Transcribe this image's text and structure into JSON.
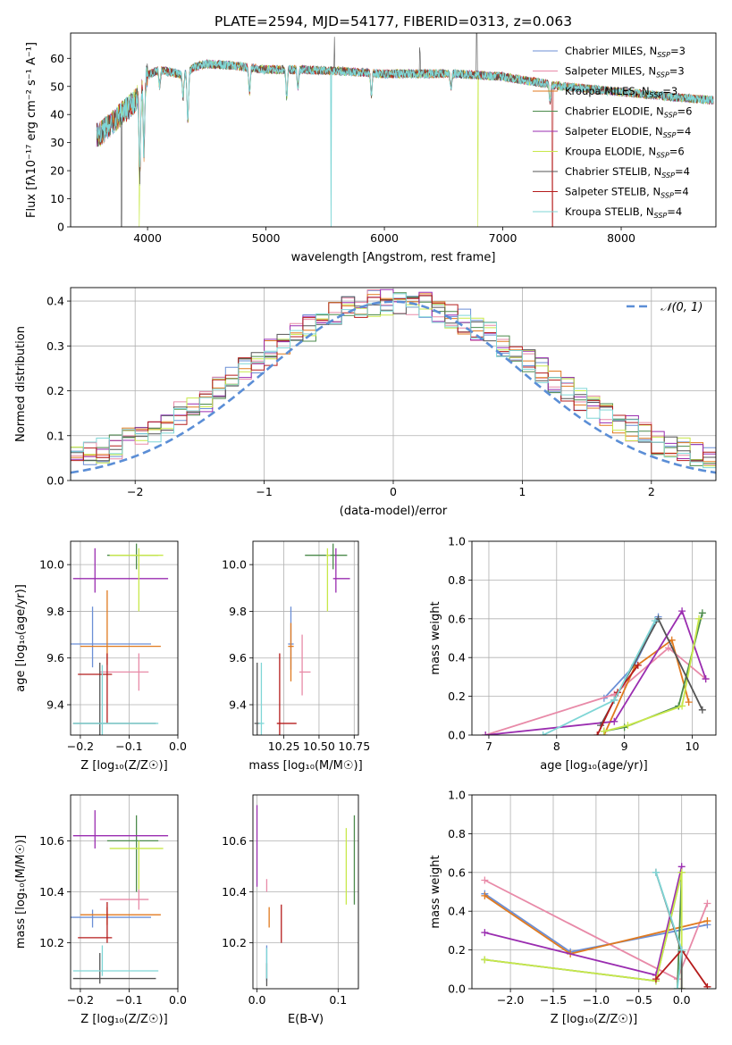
{
  "figure": {
    "title": "PLATE=2594, MJD=54177, FIBERID=0313, z=0.063"
  },
  "models": [
    {
      "name": "Chabrier MILES",
      "nssp": "3",
      "color": "#6b8fd6"
    },
    {
      "name": "Salpeter MILES",
      "nssp": "3",
      "color": "#e88aa8"
    },
    {
      "name": "Kroupa MILES",
      "nssp": "3",
      "color": "#e07a1f"
    },
    {
      "name": "Chabrier ELODIE",
      "nssp": "6",
      "color": "#4b8a4b"
    },
    {
      "name": "Salpeter ELODIE",
      "nssp": "4",
      "color": "#9a2db0"
    },
    {
      "name": "Kroupa ELODIE",
      "nssp": "6",
      "color": "#c8e84a"
    },
    {
      "name": "Chabrier STELIB",
      "nssp": "4",
      "color": "#555555"
    },
    {
      "name": "Salpeter STELIB",
      "nssp": "4",
      "color": "#b51c1c"
    },
    {
      "name": "Kroupa STELIB",
      "nssp": "4",
      "color": "#7fd6d6"
    }
  ],
  "chart_data": [
    {
      "id": "spectrum",
      "type": "line",
      "xlabel": "wavelength [Angstrom, rest frame]",
      "ylabel": "Flux [fλ10⁻¹⁷ erg cm⁻² s⁻¹ A⁻¹]",
      "xlim": [
        3350,
        8800
      ],
      "ylim": [
        0,
        69
      ],
      "xticks": [
        "4000",
        "5000",
        "6000",
        "7000",
        "8000"
      ],
      "yticks": [
        "0",
        "10",
        "20",
        "30",
        "40",
        "50",
        "60"
      ],
      "legend": "top-right",
      "continuum": {
        "x": [
          3600,
          3700,
          3800,
          3900,
          3950,
          4000,
          4100,
          4200,
          4300,
          4400,
          4500,
          4700,
          5000,
          5300,
          5600,
          6000,
          6300,
          6600,
          7000,
          7500,
          8000,
          8500,
          8800
        ],
        "y": [
          33,
          37,
          41,
          45,
          50,
          54,
          56,
          55,
          54,
          57,
          58,
          57.5,
          56,
          56,
          55.5,
          54.5,
          54.5,
          54.5,
          53.5,
          50,
          48,
          46,
          45
        ]
      },
      "absorption_lines": [
        {
          "x": 3934,
          "depth": 30
        },
        {
          "x": 3969,
          "depth": 25
        },
        {
          "x": 4102,
          "depth": 6
        },
        {
          "x": 4300,
          "depth": 8
        },
        {
          "x": 4340,
          "depth": 18
        },
        {
          "x": 4861,
          "depth": 9
        },
        {
          "x": 5175,
          "depth": 10
        },
        {
          "x": 5270,
          "depth": 6
        },
        {
          "x": 5890,
          "depth": 8
        },
        {
          "x": 6563,
          "depth": 5
        },
        {
          "x": 7400,
          "depth": 6
        }
      ],
      "emission_spikes": [
        {
          "x": 5577,
          "height": 13
        },
        {
          "x": 6300,
          "height": 8
        },
        {
          "x": 6780,
          "height": 18
        }
      ],
      "dropouts": [
        {
          "x": 3780,
          "to": 0,
          "model": 6
        },
        {
          "x": 3930,
          "to": 0,
          "model": 5
        },
        {
          "x": 6790,
          "to": 0,
          "model": 5
        },
        {
          "x": 7420,
          "to": 0,
          "model": 7
        },
        {
          "x": 5550,
          "to": 0,
          "model": 8
        }
      ]
    },
    {
      "id": "residual-hist",
      "type": "histogram",
      "xlabel": "(data-model)/error",
      "ylabel": "Normed distribution",
      "xlim": [
        -2.5,
        2.5
      ],
      "ylim": [
        0,
        0.43
      ],
      "xticks": [
        "−2",
        "−1",
        "0",
        "1",
        "2"
      ],
      "yticks": [
        "0.0",
        "0.1",
        "0.2",
        "0.3",
        "0.4"
      ],
      "bin_width": 0.1,
      "gaussian": {
        "label": "𝒩(0, 1)",
        "mean": 0,
        "sigma": 1,
        "color": "#5b8ed6"
      },
      "legend": "top-right"
    },
    {
      "id": "age-vs-Z",
      "type": "errorbar",
      "xlabel": "Z [log₁₀(Z/Z☉)]",
      "ylabel": "age  [log₁₀(age/yr)]",
      "xlim": [
        -0.22,
        0.0
      ],
      "ylim": [
        9.27,
        10.1
      ],
      "xticks": [
        "−0.2",
        "−0.1",
        "0.0"
      ],
      "yticks": [
        "9.4",
        "9.6",
        "9.8",
        "10.0"
      ],
      "points": [
        {
          "model": 0,
          "x": -0.175,
          "xerr": [
            0.045,
            0.12
          ],
          "y": 9.66,
          "yerr": [
            0.1,
            0.16
          ]
        },
        {
          "model": 1,
          "x": -0.08,
          "xerr": [
            0.08,
            0.02
          ],
          "y": 9.54,
          "yerr": [
            0.08,
            0.08
          ]
        },
        {
          "model": 2,
          "x": -0.145,
          "xerr": [
            0.055,
            0.11
          ],
          "y": 9.65,
          "yerr": [
            0.08,
            0.24
          ]
        },
        {
          "model": 3,
          "x": -0.085,
          "xerr": [
            0.06,
            0.045
          ],
          "y": 10.04,
          "yerr": [
            0.06,
            0.05
          ]
        },
        {
          "model": 4,
          "x": -0.17,
          "xerr": [
            0.045,
            0.15
          ],
          "y": 9.94,
          "yerr": [
            0.06,
            0.13
          ]
        },
        {
          "model": 5,
          "x": -0.08,
          "xerr": [
            0.06,
            0.05
          ],
          "y": 10.04,
          "yerr": [
            0.24,
            0.03
          ]
        },
        {
          "model": 6,
          "x": -0.16,
          "xerr": [
            0.055,
            0.115
          ],
          "y": 9.32,
          "yerr": [
            0.05,
            0.26
          ]
        },
        {
          "model": 7,
          "x": -0.145,
          "xerr": [
            0.06,
            0.01
          ],
          "y": 9.53,
          "yerr": [
            0.21,
            0.09
          ]
        },
        {
          "model": 8,
          "x": -0.155,
          "xerr": [
            0.06,
            0.115
          ],
          "y": 9.32,
          "yerr": [
            0.05,
            0.25
          ]
        }
      ]
    },
    {
      "id": "age-vs-mass",
      "type": "errorbar",
      "xlabel": "mass [log₁₀(M/M☉)]",
      "ylabel": "",
      "xlim": [
        10.03,
        10.78
      ],
      "ylim": [
        9.27,
        10.1
      ],
      "xticks": [
        "10.25",
        "10.50",
        "10.75"
      ],
      "yticks": [
        "9.4",
        "9.6",
        "9.8",
        "10.0"
      ],
      "points": [
        {
          "model": 0,
          "x": 10.3,
          "xerr": [
            0.02,
            0.02
          ],
          "y": 9.66,
          "yerr": [
            0.11,
            0.16
          ]
        },
        {
          "model": 1,
          "x": 10.38,
          "xerr": [
            0.02,
            0.06
          ],
          "y": 9.54,
          "yerr": [
            0.1,
            0.16
          ]
        },
        {
          "model": 2,
          "x": 10.3,
          "xerr": [
            0.02,
            0.02
          ],
          "y": 9.65,
          "yerr": [
            0.15,
            0.1
          ]
        },
        {
          "model": 3,
          "x": 10.6,
          "xerr": [
            0.2,
            0.1
          ],
          "y": 10.04,
          "yerr": [
            0.06,
            0.05
          ]
        },
        {
          "model": 4,
          "x": 10.62,
          "xerr": [
            0.02,
            0.1
          ],
          "y": 9.94,
          "yerr": [
            0.06,
            0.13
          ]
        },
        {
          "model": 5,
          "x": 10.56,
          "xerr": [
            0.01,
            0.02
          ],
          "y": 10.04,
          "yerr": [
            0.24,
            0.03
          ]
        },
        {
          "model": 6,
          "x": 10.06,
          "xerr": [
            0.02,
            0.02
          ],
          "y": 9.32,
          "yerr": [
            0.05,
            0.26
          ]
        },
        {
          "model": 7,
          "x": 10.22,
          "xerr": [
            0.02,
            0.12
          ],
          "y": 9.32,
          "yerr": [
            0.05,
            0.3
          ]
        },
        {
          "model": 8,
          "x": 10.09,
          "xerr": [
            0.02,
            0.02
          ],
          "y": 9.32,
          "yerr": [
            0.05,
            0.26
          ]
        }
      ]
    },
    {
      "id": "weight-vs-age",
      "type": "line",
      "xlabel": "age  [log₁₀(age/yr)]",
      "ylabel": "mass weight",
      "xlim": [
        6.75,
        10.35
      ],
      "ylim": [
        0,
        1.0
      ],
      "xticks": [
        "7",
        "8",
        "9",
        "10"
      ],
      "yticks": [
        "0.0",
        "0.2",
        "0.4",
        "0.6",
        "0.8",
        "1.0"
      ],
      "series": [
        {
          "model": 0,
          "x": [
            8.7,
            9.15,
            9.5
          ],
          "y": [
            0.19,
            0.36,
            0.61
          ]
        },
        {
          "model": 1,
          "x": [
            6.95,
            8.85,
            9.65,
            10.2
          ],
          "y": [
            0.0,
            0.21,
            0.45,
            0.29
          ]
        },
        {
          "model": 2,
          "x": [
            8.7,
            9.15,
            9.7,
            9.95
          ],
          "y": [
            0.0,
            0.35,
            0.49,
            0.17
          ]
        },
        {
          "model": 3,
          "x": [
            8.7,
            9.0,
            9.8,
            10.15
          ],
          "y": [
            0.02,
            0.04,
            0.15,
            0.63
          ]
        },
        {
          "model": 4,
          "x": [
            6.95,
            8.85,
            9.85,
            10.2
          ],
          "y": [
            0.0,
            0.07,
            0.64,
            0.29
          ]
        },
        {
          "model": 5,
          "x": [
            8.7,
            9.05,
            9.85,
            10.1
          ],
          "y": [
            0.02,
            0.05,
            0.15,
            0.6
          ]
        },
        {
          "model": 6,
          "x": [
            8.65,
            8.85,
            9.5,
            10.15
          ],
          "y": [
            0.05,
            0.18,
            0.6,
            0.13
          ]
        },
        {
          "model": 7,
          "x": [
            8.6,
            8.9,
            9.2
          ],
          "y": [
            0.0,
            0.22,
            0.36
          ]
        },
        {
          "model": 8,
          "x": [
            7.8,
            8.85,
            9.45
          ],
          "y": [
            0.0,
            0.18,
            0.59
          ]
        }
      ]
    },
    {
      "id": "mass-vs-Z",
      "type": "errorbar",
      "xlabel": "Z [log₁₀(Z/Z☉)]",
      "ylabel": "mass [log₁₀(M/M☉)]",
      "xlim": [
        -0.22,
        0.0
      ],
      "ylim": [
        10.02,
        10.78
      ],
      "xticks": [
        "−0.2",
        "−0.1",
        "0.0"
      ],
      "yticks": [
        "10.2",
        "10.4",
        "10.6"
      ],
      "points": [
        {
          "model": 0,
          "x": -0.175,
          "xerr": [
            0.045,
            0.12
          ],
          "y": 10.3,
          "yerr": [
            0.04,
            0.03
          ]
        },
        {
          "model": 1,
          "x": -0.08,
          "xerr": [
            0.08,
            0.02
          ],
          "y": 10.37,
          "yerr": [
            0.04,
            0.04
          ]
        },
        {
          "model": 2,
          "x": -0.145,
          "xerr": [
            0.055,
            0.11
          ],
          "y": 10.31,
          "yerr": [
            0.04,
            0.03
          ]
        },
        {
          "model": 3,
          "x": -0.085,
          "xerr": [
            0.06,
            0.045
          ],
          "y": 10.6,
          "yerr": [
            0.2,
            0.1
          ]
        },
        {
          "model": 4,
          "x": -0.17,
          "xerr": [
            0.045,
            0.15
          ],
          "y": 10.62,
          "yerr": [
            0.05,
            0.1
          ]
        },
        {
          "model": 5,
          "x": -0.08,
          "xerr": [
            0.06,
            0.05
          ],
          "y": 10.57,
          "yerr": [
            0.16,
            0.03
          ]
        },
        {
          "model": 6,
          "x": -0.16,
          "xerr": [
            0.055,
            0.115
          ],
          "y": 10.06,
          "yerr": [
            0.02,
            0.1
          ]
        },
        {
          "model": 7,
          "x": -0.145,
          "xerr": [
            0.06,
            0.01
          ],
          "y": 10.22,
          "yerr": [
            0.02,
            0.14
          ]
        },
        {
          "model": 8,
          "x": -0.155,
          "xerr": [
            0.06,
            0.115
          ],
          "y": 10.09,
          "yerr": [
            0.02,
            0.1
          ]
        }
      ]
    },
    {
      "id": "mass-vs-ebv",
      "type": "errorbar",
      "xlabel": "E(B-V)",
      "ylabel": "",
      "xlim": [
        -0.005,
        0.125
      ],
      "ylim": [
        10.02,
        10.78
      ],
      "xticks": [
        "0.0",
        "0.1"
      ],
      "yticks": [
        "10.2",
        "10.4",
        "10.6"
      ],
      "points": [
        {
          "model": 0,
          "x": 0.012,
          "xerr": [
            0,
            0
          ],
          "y": 10.09,
          "yerr": [
            0.04,
            0.1
          ]
        },
        {
          "model": 1,
          "x": 0.012,
          "xerr": [
            0,
            0
          ],
          "y": 10.42,
          "yerr": [
            0.02,
            0.03
          ]
        },
        {
          "model": 2,
          "x": 0.015,
          "xerr": [
            0,
            0
          ],
          "y": 10.3,
          "yerr": [
            0.04,
            0.04
          ]
        },
        {
          "model": 3,
          "x": 0.12,
          "xerr": [
            0,
            0
          ],
          "y": 10.55,
          "yerr": [
            0.2,
            0.15
          ]
        },
        {
          "model": 4,
          "x": 0.0,
          "xerr": [
            0,
            0
          ],
          "y": 10.62,
          "yerr": [
            0.2,
            0.12
          ]
        },
        {
          "model": 5,
          "x": 0.11,
          "xerr": [
            0,
            0
          ],
          "y": 10.5,
          "yerr": [
            0.15,
            0.15
          ]
        },
        {
          "model": 6,
          "x": 0.012,
          "xerr": [
            0,
            0
          ],
          "y": 10.07,
          "yerr": [
            0.04,
            0.05
          ]
        },
        {
          "model": 7,
          "x": 0.03,
          "xerr": [
            0,
            0
          ],
          "y": 10.27,
          "yerr": [
            0.07,
            0.08
          ]
        },
        {
          "model": 8,
          "x": 0.012,
          "xerr": [
            0,
            0
          ],
          "y": 10.11,
          "yerr": [
            0.05,
            0.07
          ]
        }
      ]
    },
    {
      "id": "weight-vs-Z",
      "type": "line",
      "xlabel": "Z [log₁₀(Z/Z☉)]",
      "ylabel": "mass weight",
      "xlim": [
        -2.45,
        0.4
      ],
      "ylim": [
        0,
        1.0
      ],
      "xticks": [
        "−2.0",
        "−1.5",
        "−1.0",
        "−0.5",
        "0.0"
      ],
      "yticks": [
        "0.0",
        "0.2",
        "0.4",
        "0.6",
        "0.8",
        "1.0"
      ],
      "series": [
        {
          "model": 0,
          "x": [
            -2.3,
            -1.3,
            0.3
          ],
          "y": [
            0.49,
            0.19,
            0.33
          ]
        },
        {
          "model": 1,
          "x": [
            -2.3,
            -0.05,
            0.3
          ],
          "y": [
            0.56,
            0.05,
            0.44
          ]
        },
        {
          "model": 2,
          "x": [
            -2.3,
            -1.3,
            0.3
          ],
          "y": [
            0.48,
            0.18,
            0.35
          ]
        },
        {
          "model": 3,
          "x": [
            -2.3,
            -0.3,
            0.0,
            -0.05
          ],
          "y": [
            0.15,
            0.04,
            0.6,
            0.0
          ]
        },
        {
          "model": 4,
          "x": [
            -2.3,
            -0.3,
            0.0
          ],
          "y": [
            0.29,
            0.07,
            0.63
          ]
        },
        {
          "model": 5,
          "x": [
            -2.3,
            -0.3,
            0.0,
            0.0
          ],
          "y": [
            0.15,
            0.04,
            0.6,
            0.0
          ]
        },
        {
          "model": 6,
          "x": [
            -0.3,
            0.0,
            0.0
          ],
          "y": [
            0.6,
            0.19,
            0.0
          ]
        },
        {
          "model": 7,
          "x": [
            -0.3,
            0.0,
            0.3
          ],
          "y": [
            0.05,
            0.2,
            0.01
          ]
        },
        {
          "model": 8,
          "x": [
            -0.3,
            0.0,
            -0.05
          ],
          "y": [
            0.6,
            0.2,
            0.0
          ]
        }
      ]
    }
  ]
}
